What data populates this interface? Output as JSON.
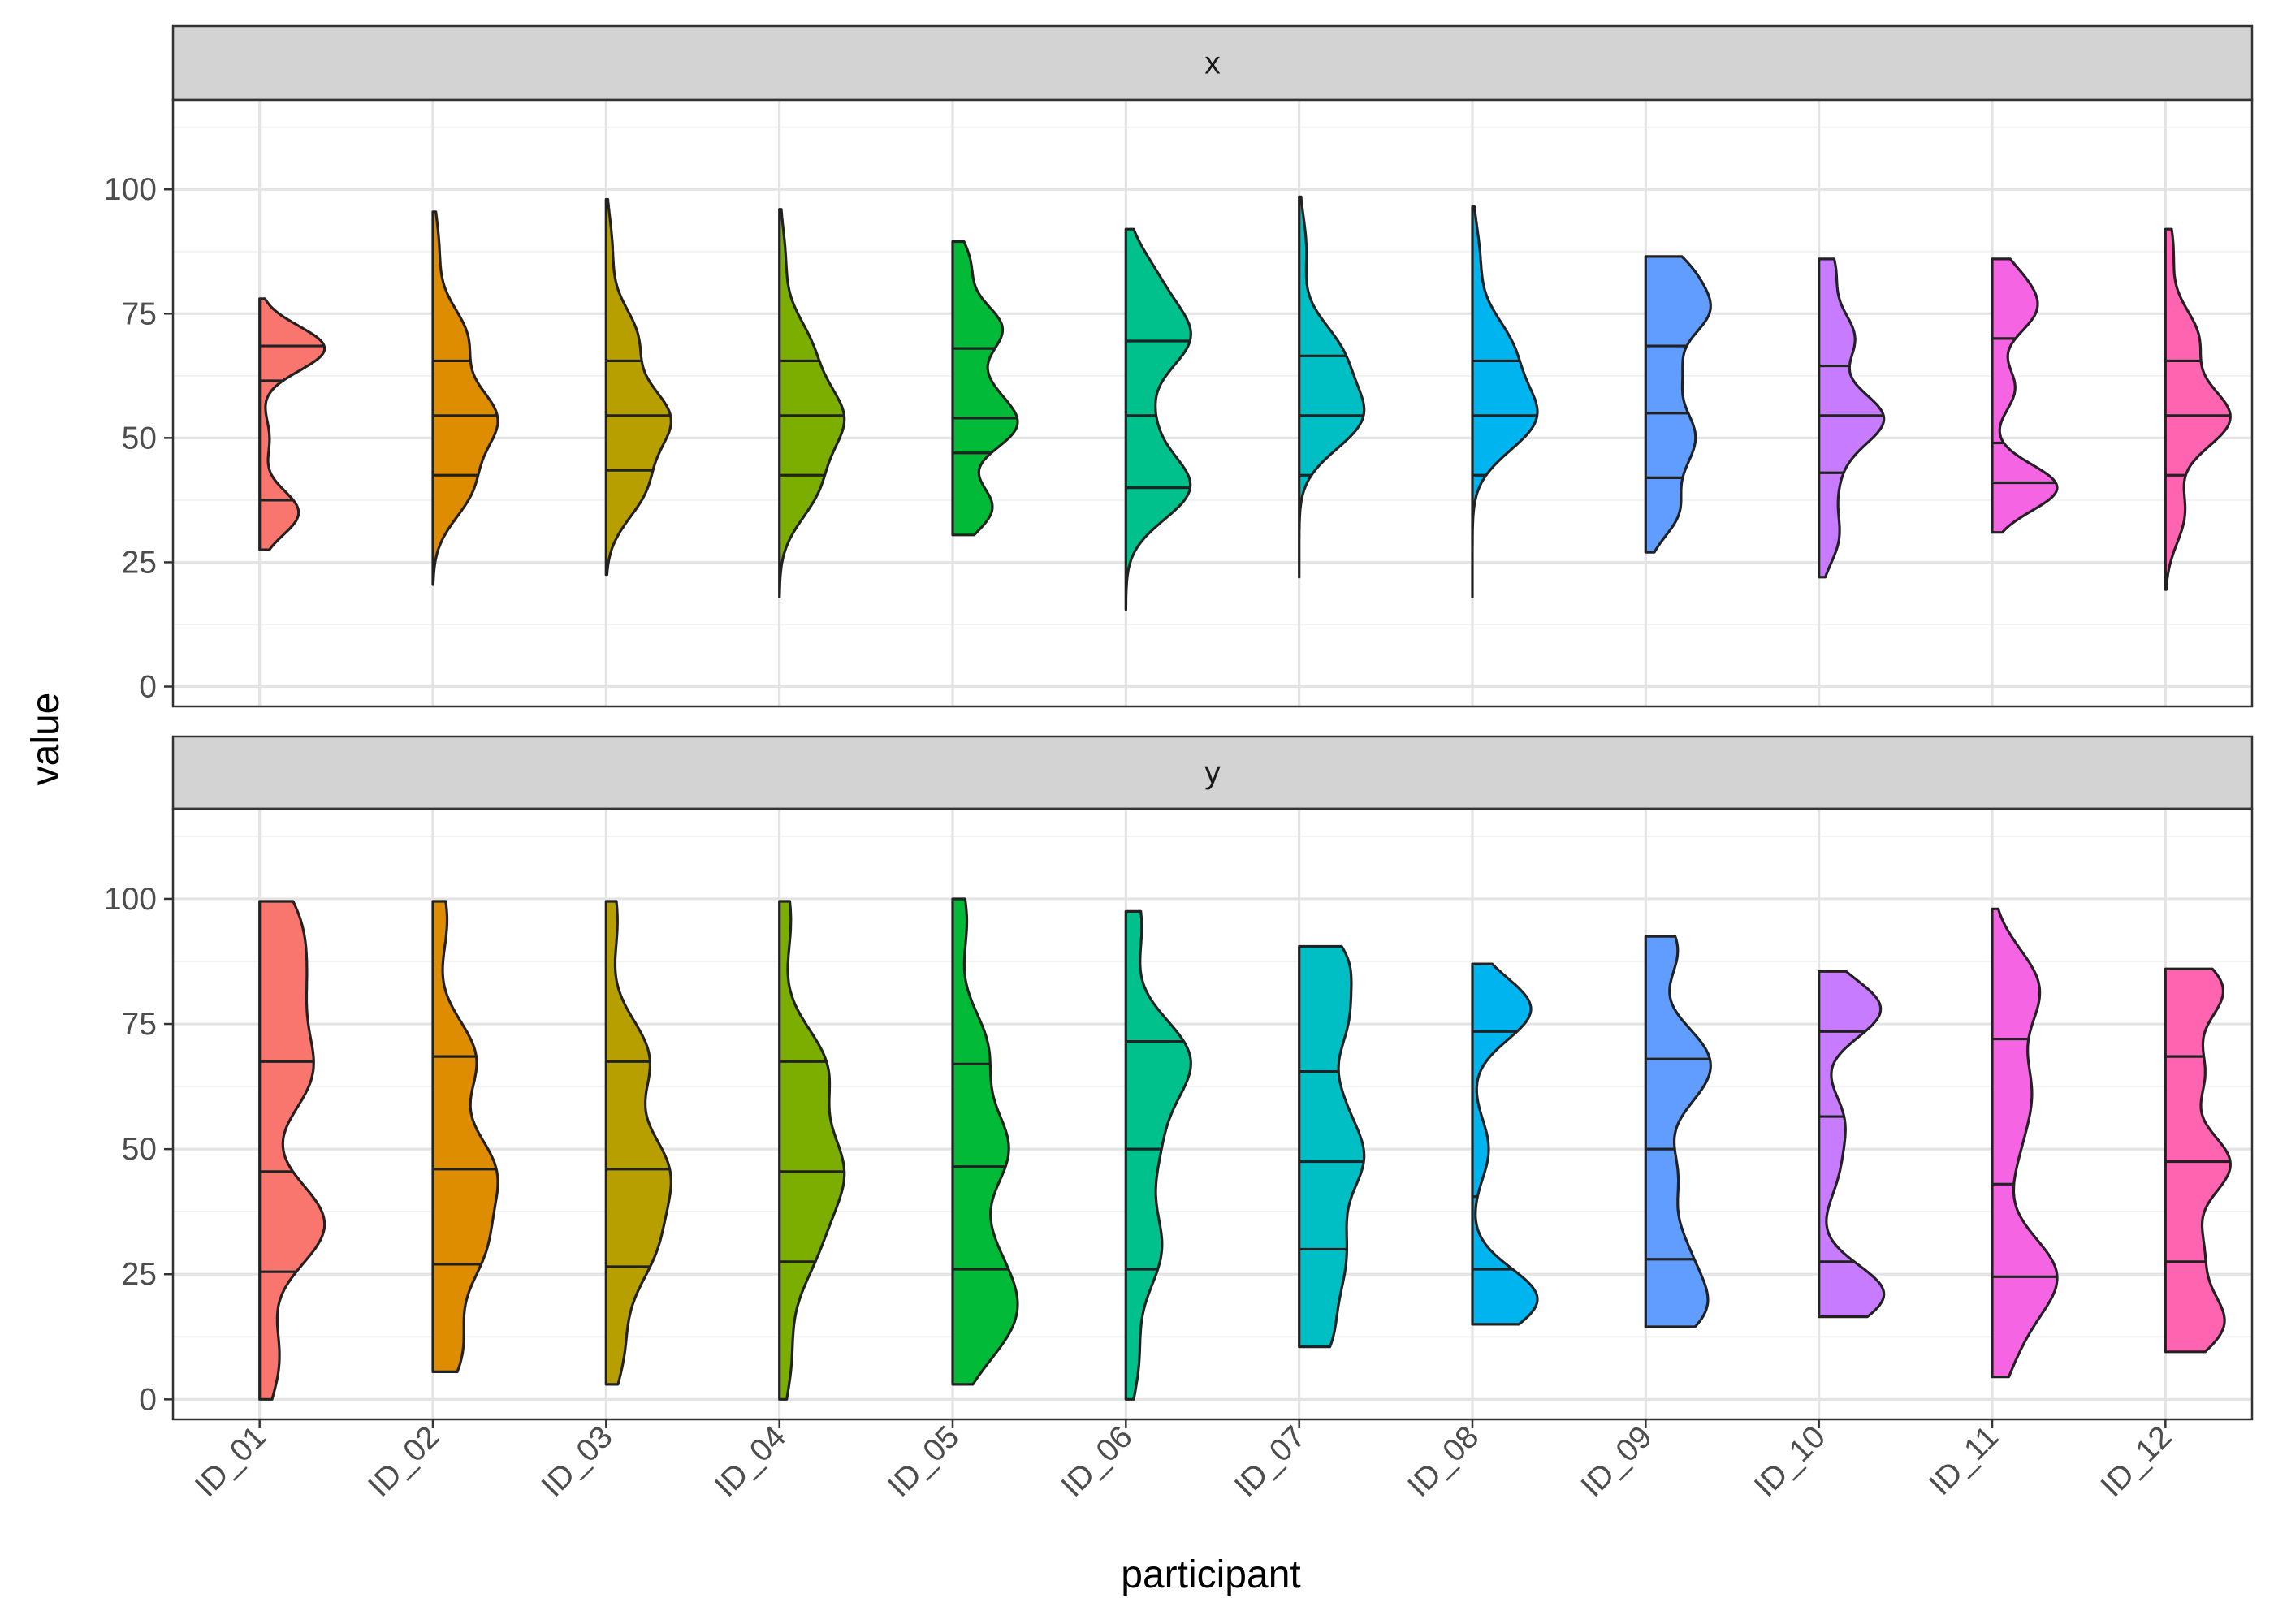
{
  "chart_data": {
    "type": "half-violin",
    "xlabel": "participant",
    "ylabel": "value",
    "ylim": [
      -4,
      118
    ],
    "yticks": [
      0,
      25,
      50,
      75,
      100
    ],
    "categories": [
      "ID_01",
      "ID_02",
      "ID_03",
      "ID_04",
      "ID_05",
      "ID_06",
      "ID_07",
      "ID_08",
      "ID_09",
      "ID_10",
      "ID_11",
      "ID_12"
    ],
    "colors": [
      "#F8766D",
      "#DE8C00",
      "#B79F00",
      "#7CAE00",
      "#00BA38",
      "#00C08B",
      "#00BFC4",
      "#00B4F0",
      "#619CFF",
      "#C77CFF",
      "#F564E3",
      "#FF64B0"
    ],
    "panels": [
      {
        "strip": "x",
        "violins": [
          {
            "min": 27.5,
            "max": 78,
            "quantiles": [
              37.5,
              61.5,
              68.5
            ],
            "peaks": [
              [
                35,
                0.6
              ],
              [
                50,
                0.15
              ],
              [
                68,
                1.0
              ]
            ]
          },
          {
            "min": 20.5,
            "max": 95.5,
            "quantiles": [
              42.5,
              54.5,
              65.5
            ],
            "peaks": [
              [
                40,
                0.6
              ],
              [
                54,
                1.0
              ],
              [
                70,
                0.55
              ],
              [
                88,
                0.1
              ]
            ]
          },
          {
            "min": 22.5,
            "max": 98,
            "quantiles": [
              43.5,
              54.5,
              65.5
            ],
            "peaks": [
              [
                40,
                0.6
              ],
              [
                54,
                1.0
              ],
              [
                70,
                0.5
              ],
              [
                88,
                0.1
              ]
            ]
          },
          {
            "min": 18,
            "max": 96,
            "quantiles": [
              42.5,
              54.5,
              65.5
            ],
            "peaks": [
              [
                40,
                0.6
              ],
              [
                54,
                1.0
              ],
              [
                68,
                0.5
              ],
              [
                86,
                0.1
              ]
            ]
          },
          {
            "min": 30.5,
            "max": 89.5,
            "quantiles": [
              47,
              54,
              68
            ],
            "peaks": [
              [
                36,
                0.7
              ],
              [
                52,
                1.0
              ],
              [
                60,
                0.45
              ],
              [
                72,
                0.85
              ],
              [
                85,
                0.3
              ]
            ]
          },
          {
            "min": 15.5,
            "max": 92,
            "quantiles": [
              40,
              54.5,
              69.5
            ],
            "peaks": [
              [
                40,
                1.0
              ],
              [
                54,
                0.35
              ],
              [
                70,
                0.95
              ],
              [
                82,
                0.4
              ]
            ]
          },
          {
            "min": 22,
            "max": 98.5,
            "quantiles": [
              42.5,
              54.5,
              66.5
            ],
            "peaks": [
              [
                54,
                1.0
              ],
              [
                67,
                0.65
              ],
              [
                88,
                0.12
              ]
            ]
          },
          {
            "min": 18,
            "max": 96.5,
            "quantiles": [
              42.5,
              54.5,
              65.5
            ],
            "peaks": [
              [
                54,
                1.0
              ],
              [
                68,
                0.6
              ],
              [
                86,
                0.12
              ]
            ]
          },
          {
            "min": 27,
            "max": 86.5,
            "quantiles": [
              42,
              55,
              68.5
            ],
            "peaks": [
              [
                35,
                0.5
              ],
              [
                45,
                0.4
              ],
              [
                52,
                0.6
              ],
              [
                63,
                0.5
              ],
              [
                75,
                0.9
              ],
              [
                84,
                0.6
              ]
            ]
          },
          {
            "min": 22,
            "max": 86,
            "quantiles": [
              43,
              54.5,
              64.5
            ],
            "peaks": [
              [
                30,
                0.3
              ],
              [
                42,
                0.25
              ],
              [
                54,
                1.0
              ],
              [
                70,
                0.55
              ],
              [
                84,
                0.25
              ]
            ]
          },
          {
            "min": 31,
            "max": 86,
            "quantiles": [
              41,
              49,
              70
            ],
            "peaks": [
              [
                40,
                1.0
              ],
              [
                60,
                0.35
              ],
              [
                75,
                0.55
              ],
              [
                82,
                0.35
              ]
            ]
          },
          {
            "min": 19.5,
            "max": 92,
            "quantiles": [
              42.5,
              54.5,
              65.5
            ],
            "peaks": [
              [
                35,
                0.3
              ],
              [
                54,
                1.0
              ],
              [
                70,
                0.5
              ],
              [
                88,
                0.12
              ]
            ]
          }
        ]
      },
      {
        "strip": "y",
        "violins": [
          {
            "min": 0,
            "max": 99.5,
            "quantiles": [
              25.5,
              45.5,
              67.5
            ],
            "peaks": [
              [
                8,
                0.3
              ],
              [
                35,
                1.0
              ],
              [
                65,
                0.75
              ],
              [
                82,
                0.5
              ],
              [
                96,
                0.5
              ]
            ]
          },
          {
            "min": 5.5,
            "max": 99.5,
            "quantiles": [
              27,
              46,
              68.5
            ],
            "peaks": [
              [
                10,
                0.5
              ],
              [
                30,
                0.8
              ],
              [
                46,
                1.0
              ],
              [
                68,
                0.75
              ],
              [
                96,
                0.25
              ]
            ]
          },
          {
            "min": 3,
            "max": 99.5,
            "quantiles": [
              26.5,
              46,
              67.5
            ],
            "peaks": [
              [
                10,
                0.3
              ],
              [
                30,
                0.75
              ],
              [
                46,
                1.0
              ],
              [
                68,
                0.75
              ],
              [
                96,
                0.2
              ]
            ]
          },
          {
            "min": 0,
            "max": 99.5,
            "quantiles": [
              27.5,
              45.5,
              67.5
            ],
            "peaks": [
              [
                8,
                0.2
              ],
              [
                30,
                0.55
              ],
              [
                46,
                1.0
              ],
              [
                66,
                0.8
              ],
              [
                96,
                0.2
              ]
            ]
          },
          {
            "min": 3,
            "max": 100,
            "quantiles": [
              26,
              46.5,
              67
            ],
            "peaks": [
              [
                10,
                0.3
              ],
              [
                18,
                0.8
              ],
              [
                30,
                0.5
              ],
              [
                50,
                0.95
              ],
              [
                70,
                0.6
              ],
              [
                96,
                0.25
              ]
            ]
          },
          {
            "min": 0,
            "max": 97.5,
            "quantiles": [
              26,
              50,
              71.5
            ],
            "peaks": [
              [
                8,
                0.2
              ],
              [
                30,
                0.55
              ],
              [
                50,
                0.45
              ],
              [
                68,
                1.0
              ],
              [
                95,
                0.25
              ]
            ]
          },
          {
            "min": 10.5,
            "max": 90.5,
            "quantiles": [
              30,
              47.5,
              65.5
            ],
            "peaks": [
              [
                12,
                0.5
              ],
              [
                25,
                0.55
              ],
              [
                35,
                0.5
              ],
              [
                48,
                0.95
              ],
              [
                60,
                0.55
              ],
              [
                75,
                0.7
              ],
              [
                88,
                0.75
              ]
            ]
          },
          {
            "min": 15,
            "max": 87,
            "quantiles": [
              26,
              40.5,
              73.5
            ],
            "peaks": [
              [
                20,
                1.0
              ],
              [
                50,
                0.25
              ],
              [
                78,
                0.9
              ]
            ]
          },
          {
            "min": 14.5,
            "max": 92.5,
            "quantiles": [
              28,
              50,
              68
            ],
            "peaks": [
              [
                18,
                0.95
              ],
              [
                30,
                0.55
              ],
              [
                45,
                0.5
              ],
              [
                62,
                0.6
              ],
              [
                70,
                0.75
              ],
              [
                90,
                0.55
              ]
            ]
          },
          {
            "min": 16.5,
            "max": 85.5,
            "quantiles": [
              27.5,
              56.5,
              73.5
            ],
            "peaks": [
              [
                21,
                1.0
              ],
              [
                45,
                0.25
              ],
              [
                56,
                0.35
              ],
              [
                78,
                0.95
              ]
            ]
          },
          {
            "min": 4.5,
            "max": 98,
            "quantiles": [
              24.5,
              43,
              72
            ],
            "peaks": [
              [
                10,
                0.3
              ],
              [
                25,
                1.0
              ],
              [
                48,
                0.3
              ],
              [
                62,
                0.55
              ],
              [
                82,
                0.75
              ]
            ]
          },
          {
            "min": 9.5,
            "max": 86,
            "quantiles": [
              27.5,
              47.5,
              68.5
            ],
            "peaks": [
              [
                15,
                0.85
              ],
              [
                30,
                0.5
              ],
              [
                47,
                0.95
              ],
              [
                65,
                0.55
              ],
              [
                82,
                0.85
              ]
            ]
          }
        ]
      }
    ]
  }
}
